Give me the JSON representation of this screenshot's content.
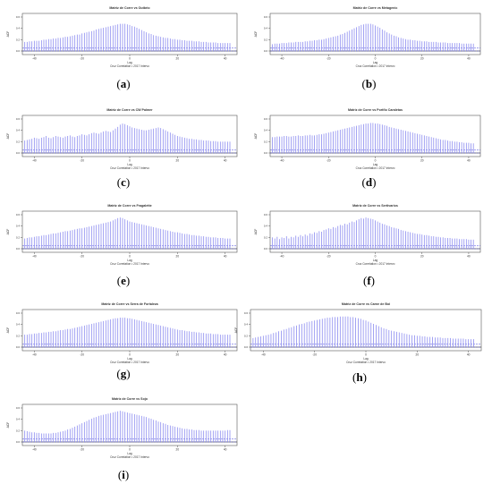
{
  "colors": {
    "bar": "#8c8cf0",
    "frame": "#555555",
    "ci": "#3b3bd8",
    "text": "#333333"
  },
  "chart_data": [
    {
      "type": "bar",
      "panel_label": "a",
      "title": "Matriz de Corre vs Outbrio",
      "xlabel": "Lag",
      "subtitle": "Cruz Correlation • 2017 Intervo",
      "ylabel": "ACF",
      "xlim": [
        -45,
        45
      ],
      "xticks": [
        -40,
        -20,
        0,
        20,
        40
      ],
      "ylim": [
        0.0,
        0.6
      ],
      "yticks": [
        0.0,
        0.2,
        0.4,
        0.6
      ],
      "ci": 0.05,
      "lags_from": -44,
      "lags_to": 42,
      "values": [
        0.16,
        0.16,
        0.17,
        0.17,
        0.18,
        0.18,
        0.18,
        0.19,
        0.2,
        0.2,
        0.21,
        0.21,
        0.22,
        0.22,
        0.23,
        0.23,
        0.24,
        0.25,
        0.25,
        0.26,
        0.27,
        0.28,
        0.29,
        0.29,
        0.31,
        0.32,
        0.33,
        0.34,
        0.35,
        0.36,
        0.38,
        0.39,
        0.4,
        0.41,
        0.42,
        0.43,
        0.44,
        0.45,
        0.46,
        0.47,
        0.48,
        0.48,
        0.48,
        0.47,
        0.46,
        0.44,
        0.43,
        0.41,
        0.39,
        0.37,
        0.35,
        0.33,
        0.31,
        0.3,
        0.28,
        0.27,
        0.26,
        0.25,
        0.24,
        0.23,
        0.23,
        0.22,
        0.21,
        0.21,
        0.2,
        0.2,
        0.19,
        0.19,
        0.18,
        0.18,
        0.18,
        0.17,
        0.17,
        0.17,
        0.16,
        0.16,
        0.16,
        0.15,
        0.15,
        0.15,
        0.15,
        0.14,
        0.14,
        0.14,
        0.14,
        0.14,
        0.14
      ]
    },
    {
      "type": "bar",
      "panel_label": "b",
      "title": "Matriz de Corre vs Metagenic",
      "xlabel": "Lag",
      "subtitle": "Cruz Correlation • 2017 Intervo",
      "ylabel": "ACF",
      "xlim": [
        -45,
        45
      ],
      "xticks": [
        -40,
        -20,
        0,
        20,
        40
      ],
      "ylim": [
        0.0,
        0.6
      ],
      "yticks": [
        0.0,
        0.2,
        0.4,
        0.6
      ],
      "ci": 0.05,
      "lags_from": -44,
      "lags_to": 42,
      "values": [
        0.12,
        0.13,
        0.13,
        0.13,
        0.14,
        0.14,
        0.14,
        0.15,
        0.15,
        0.15,
        0.16,
        0.16,
        0.16,
        0.16,
        0.17,
        0.17,
        0.18,
        0.18,
        0.19,
        0.19,
        0.2,
        0.2,
        0.21,
        0.22,
        0.23,
        0.24,
        0.25,
        0.26,
        0.27,
        0.29,
        0.3,
        0.32,
        0.34,
        0.36,
        0.38,
        0.4,
        0.42,
        0.44,
        0.46,
        0.47,
        0.48,
        0.48,
        0.48,
        0.47,
        0.45,
        0.43,
        0.41,
        0.38,
        0.36,
        0.33,
        0.31,
        0.29,
        0.27,
        0.26,
        0.24,
        0.23,
        0.22,
        0.21,
        0.2,
        0.2,
        0.19,
        0.19,
        0.18,
        0.18,
        0.17,
        0.17,
        0.17,
        0.16,
        0.16,
        0.16,
        0.16,
        0.15,
        0.15,
        0.15,
        0.15,
        0.14,
        0.14,
        0.14,
        0.14,
        0.14,
        0.14,
        0.13,
        0.13,
        0.13,
        0.13,
        0.13,
        0.13
      ]
    },
    {
      "type": "bar",
      "panel_label": "c",
      "title": "Matriz de Corre vs CW Palmer",
      "xlabel": "Lag",
      "subtitle": "Cruz Correlation • 2017 Intervo",
      "ylabel": "ACF",
      "xlim": [
        -45,
        45
      ],
      "xticks": [
        -40,
        -20,
        0,
        20,
        40
      ],
      "ylim": [
        0.0,
        0.6
      ],
      "yticks": [
        0.0,
        0.2,
        0.4,
        0.6
      ],
      "ci": 0.05,
      "lags_from": -44,
      "lags_to": 42,
      "values": [
        0.22,
        0.23,
        0.24,
        0.25,
        0.27,
        0.26,
        0.25,
        0.27,
        0.28,
        0.3,
        0.27,
        0.26,
        0.28,
        0.3,
        0.29,
        0.28,
        0.27,
        0.29,
        0.3,
        0.31,
        0.29,
        0.28,
        0.3,
        0.31,
        0.33,
        0.32,
        0.31,
        0.33,
        0.35,
        0.36,
        0.35,
        0.34,
        0.36,
        0.38,
        0.39,
        0.38,
        0.37,
        0.4,
        0.43,
        0.46,
        0.5,
        0.52,
        0.51,
        0.49,
        0.47,
        0.45,
        0.44,
        0.43,
        0.42,
        0.41,
        0.4,
        0.4,
        0.41,
        0.42,
        0.43,
        0.44,
        0.45,
        0.44,
        0.42,
        0.4,
        0.38,
        0.36,
        0.34,
        0.32,
        0.3,
        0.29,
        0.28,
        0.27,
        0.26,
        0.25,
        0.25,
        0.24,
        0.24,
        0.23,
        0.23,
        0.22,
        0.22,
        0.22,
        0.21,
        0.21,
        0.21,
        0.2,
        0.2,
        0.2,
        0.2,
        0.2,
        0.2
      ]
    },
    {
      "type": "bar",
      "panel_label": "d",
      "title": "Matriz de Corre vs Portfio Caraletas",
      "xlabel": "Lag",
      "subtitle": "Cruz Correlation • 2017 Intervo",
      "ylabel": "ACF",
      "xlim": [
        -45,
        45
      ],
      "xticks": [
        -40,
        -20,
        0,
        20,
        40
      ],
      "ylim": [
        0.0,
        0.6
      ],
      "yticks": [
        0.0,
        0.2,
        0.4,
        0.6
      ],
      "ci": 0.05,
      "lags_from": -44,
      "lags_to": 42,
      "values": [
        0.28,
        0.28,
        0.29,
        0.29,
        0.29,
        0.3,
        0.3,
        0.29,
        0.29,
        0.3,
        0.3,
        0.31,
        0.3,
        0.3,
        0.31,
        0.31,
        0.32,
        0.31,
        0.31,
        0.32,
        0.33,
        0.33,
        0.34,
        0.35,
        0.36,
        0.37,
        0.38,
        0.39,
        0.4,
        0.41,
        0.42,
        0.43,
        0.44,
        0.45,
        0.46,
        0.47,
        0.48,
        0.49,
        0.5,
        0.51,
        0.52,
        0.52,
        0.53,
        0.53,
        0.52,
        0.52,
        0.51,
        0.5,
        0.49,
        0.48,
        0.46,
        0.45,
        0.44,
        0.43,
        0.42,
        0.41,
        0.4,
        0.39,
        0.38,
        0.37,
        0.36,
        0.35,
        0.34,
        0.33,
        0.32,
        0.31,
        0.3,
        0.29,
        0.28,
        0.27,
        0.26,
        0.25,
        0.24,
        0.23,
        0.23,
        0.22,
        0.21,
        0.21,
        0.2,
        0.2,
        0.19,
        0.19,
        0.18,
        0.18,
        0.18,
        0.17,
        0.17
      ]
    },
    {
      "type": "bar",
      "panel_label": "e",
      "title": "Matriz de Corre vs Fragalette",
      "xlabel": "Lag",
      "subtitle": "Cruz Correlation • 2017 Intervo",
      "ylabel": "ACF",
      "xlim": [
        -45,
        45
      ],
      "xticks": [
        -40,
        -20,
        0,
        20,
        40
      ],
      "ylim": [
        0.0,
        0.6
      ],
      "yticks": [
        0.0,
        0.2,
        0.4,
        0.6
      ],
      "ci": 0.05,
      "lags_from": -44,
      "lags_to": 42,
      "values": [
        0.18,
        0.19,
        0.2,
        0.2,
        0.21,
        0.22,
        0.22,
        0.23,
        0.24,
        0.24,
        0.25,
        0.26,
        0.27,
        0.27,
        0.28,
        0.29,
        0.3,
        0.31,
        0.31,
        0.32,
        0.33,
        0.34,
        0.35,
        0.36,
        0.36,
        0.37,
        0.38,
        0.39,
        0.4,
        0.41,
        0.42,
        0.43,
        0.44,
        0.45,
        0.46,
        0.47,
        0.48,
        0.5,
        0.52,
        0.54,
        0.55,
        0.54,
        0.52,
        0.5,
        0.48,
        0.47,
        0.46,
        0.45,
        0.44,
        0.43,
        0.42,
        0.41,
        0.4,
        0.39,
        0.38,
        0.37,
        0.36,
        0.35,
        0.34,
        0.33,
        0.32,
        0.31,
        0.3,
        0.29,
        0.29,
        0.28,
        0.27,
        0.26,
        0.26,
        0.25,
        0.24,
        0.24,
        0.23,
        0.23,
        0.22,
        0.22,
        0.21,
        0.21,
        0.2,
        0.2,
        0.2,
        0.19,
        0.19,
        0.19,
        0.18,
        0.18,
        0.18
      ]
    },
    {
      "type": "bar",
      "panel_label": "f",
      "title": "Matriz de Corre vs Sertivarios",
      "xlabel": "Lag",
      "subtitle": "Cruz Correlation • 2017 Intervo",
      "ylabel": "ACF",
      "xlim": [
        -45,
        45
      ],
      "xticks": [
        -40,
        -20,
        0,
        20,
        40
      ],
      "ylim": [
        0.0,
        0.6
      ],
      "yticks": [
        0.0,
        0.2,
        0.4,
        0.6
      ],
      "ci": 0.05,
      "lags_from": -44,
      "lags_to": 42,
      "values": [
        0.2,
        0.18,
        0.21,
        0.17,
        0.2,
        0.19,
        0.22,
        0.18,
        0.21,
        0.2,
        0.23,
        0.21,
        0.24,
        0.22,
        0.25,
        0.23,
        0.27,
        0.26,
        0.29,
        0.28,
        0.31,
        0.3,
        0.33,
        0.34,
        0.36,
        0.35,
        0.38,
        0.37,
        0.4,
        0.42,
        0.41,
        0.44,
        0.43,
        0.46,
        0.48,
        0.47,
        0.5,
        0.52,
        0.54,
        0.53,
        0.55,
        0.54,
        0.53,
        0.52,
        0.5,
        0.48,
        0.46,
        0.44,
        0.43,
        0.41,
        0.4,
        0.38,
        0.37,
        0.36,
        0.35,
        0.33,
        0.32,
        0.31,
        0.3,
        0.29,
        0.28,
        0.27,
        0.26,
        0.26,
        0.25,
        0.24,
        0.24,
        0.23,
        0.22,
        0.22,
        0.21,
        0.21,
        0.2,
        0.2,
        0.19,
        0.19,
        0.19,
        0.18,
        0.18,
        0.18,
        0.17,
        0.17,
        0.17,
        0.17,
        0.16,
        0.16,
        0.16
      ]
    },
    {
      "type": "bar",
      "panel_label": "g",
      "title": "Matriz de Corre vs Serra de Fortaleza",
      "xlabel": "Lag",
      "subtitle": "Cruz Correlation • 2017 Intervo",
      "ylabel": "ACF",
      "xlim": [
        -45,
        45
      ],
      "xticks": [
        -40,
        -20,
        0,
        20,
        40
      ],
      "ylim": [
        0.0,
        0.6
      ],
      "yticks": [
        0.0,
        0.2,
        0.4,
        0.6
      ],
      "ci": 0.05,
      "lags_from": -44,
      "lags_to": 42,
      "values": [
        0.22,
        0.22,
        0.23,
        0.23,
        0.24,
        0.24,
        0.25,
        0.25,
        0.26,
        0.26,
        0.27,
        0.27,
        0.28,
        0.28,
        0.29,
        0.3,
        0.3,
        0.31,
        0.32,
        0.32,
        0.33,
        0.34,
        0.35,
        0.36,
        0.37,
        0.38,
        0.39,
        0.4,
        0.41,
        0.42,
        0.43,
        0.44,
        0.45,
        0.46,
        0.47,
        0.48,
        0.49,
        0.5,
        0.51,
        0.51,
        0.52,
        0.52,
        0.52,
        0.51,
        0.51,
        0.5,
        0.49,
        0.48,
        0.47,
        0.46,
        0.45,
        0.44,
        0.43,
        0.42,
        0.41,
        0.4,
        0.39,
        0.38,
        0.37,
        0.36,
        0.35,
        0.34,
        0.33,
        0.32,
        0.31,
        0.3,
        0.3,
        0.29,
        0.28,
        0.28,
        0.27,
        0.27,
        0.26,
        0.26,
        0.25,
        0.25,
        0.24,
        0.24,
        0.24,
        0.23,
        0.23,
        0.23,
        0.22,
        0.22,
        0.22,
        0.22,
        0.22
      ]
    },
    {
      "type": "bar",
      "panel_label": "h",
      "title": "Matriz de Corre vs Carne de Boi",
      "xlabel": "Lag",
      "subtitle": "Cruz Correlation • 2017 Intervo",
      "ylabel": "ACF",
      "xlim": [
        -45,
        45
      ],
      "xticks": [
        -40,
        -20,
        0,
        20,
        40
      ],
      "ylim": [
        0.0,
        0.6
      ],
      "yticks": [
        0.0,
        0.2,
        0.4,
        0.6
      ],
      "ci": 0.05,
      "lags_from": -44,
      "lags_to": 42,
      "values": [
        0.16,
        0.17,
        0.18,
        0.19,
        0.2,
        0.21,
        0.22,
        0.23,
        0.25,
        0.26,
        0.28,
        0.29,
        0.31,
        0.32,
        0.34,
        0.35,
        0.37,
        0.38,
        0.4,
        0.41,
        0.42,
        0.44,
        0.45,
        0.46,
        0.47,
        0.48,
        0.49,
        0.5,
        0.51,
        0.52,
        0.52,
        0.53,
        0.53,
        0.53,
        0.54,
        0.54,
        0.54,
        0.54,
        0.53,
        0.53,
        0.52,
        0.51,
        0.5,
        0.48,
        0.47,
        0.45,
        0.43,
        0.41,
        0.39,
        0.37,
        0.35,
        0.33,
        0.32,
        0.3,
        0.29,
        0.28,
        0.27,
        0.26,
        0.25,
        0.24,
        0.23,
        0.22,
        0.21,
        0.21,
        0.2,
        0.2,
        0.19,
        0.19,
        0.18,
        0.18,
        0.18,
        0.17,
        0.17,
        0.17,
        0.16,
        0.16,
        0.16,
        0.16,
        0.15,
        0.15,
        0.15,
        0.15,
        0.15,
        0.14,
        0.14,
        0.14,
        0.14
      ]
    },
    {
      "type": "bar",
      "panel_label": "i",
      "title": "Matriz de Corre vs Sojo",
      "xlabel": "Lag",
      "subtitle": "Cruz Correlation • 2017 Intervo",
      "ylabel": "ACF",
      "xlim": [
        -45,
        45
      ],
      "xticks": [
        -40,
        -20,
        0,
        20,
        40
      ],
      "ylim": [
        0.0,
        0.6
      ],
      "yticks": [
        0.0,
        0.2,
        0.4,
        0.6
      ],
      "ci": 0.05,
      "lags_from": -44,
      "lags_to": 42,
      "values": [
        0.2,
        0.19,
        0.18,
        0.17,
        0.17,
        0.16,
        0.16,
        0.15,
        0.15,
        0.15,
        0.15,
        0.15,
        0.16,
        0.16,
        0.17,
        0.18,
        0.19,
        0.2,
        0.22,
        0.23,
        0.25,
        0.27,
        0.29,
        0.31,
        0.33,
        0.35,
        0.37,
        0.39,
        0.41,
        0.43,
        0.44,
        0.46,
        0.47,
        0.48,
        0.49,
        0.5,
        0.51,
        0.52,
        0.53,
        0.54,
        0.55,
        0.54,
        0.53,
        0.52,
        0.51,
        0.5,
        0.49,
        0.48,
        0.47,
        0.46,
        0.45,
        0.44,
        0.42,
        0.41,
        0.39,
        0.38,
        0.36,
        0.35,
        0.33,
        0.32,
        0.3,
        0.29,
        0.28,
        0.27,
        0.26,
        0.25,
        0.24,
        0.23,
        0.23,
        0.22,
        0.22,
        0.21,
        0.21,
        0.21,
        0.2,
        0.2,
        0.2,
        0.2,
        0.2,
        0.2,
        0.2,
        0.2,
        0.2,
        0.2,
        0.2,
        0.21,
        0.21
      ]
    }
  ]
}
